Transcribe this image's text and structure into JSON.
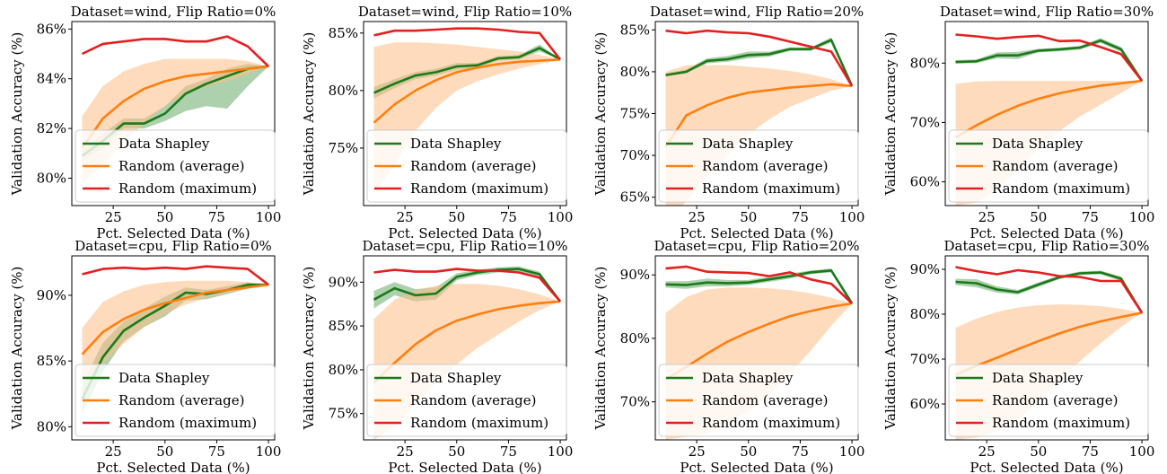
{
  "colors": {
    "shapley": "#1a7a1a",
    "shapley_band": "#6aaa6a",
    "random_avg": "#ff7f0e",
    "random_avg_band": "#ffbe86",
    "random_max": "#e41f1f",
    "frame": "#000000"
  },
  "legend_labels": [
    "Data Shapley",
    "Random (average)",
    "Random (maximum)"
  ],
  "chart_data": [
    {
      "type": "line",
      "title": "Dataset=wind, Flip Ratio=0%",
      "xlabel": "Pct. Selected Data (%)",
      "ylabel": "Validation Accuracy (%)",
      "xlim": [
        5,
        103
      ],
      "ylim": [
        78.9,
        86.3
      ],
      "xticks": [
        25,
        50,
        75,
        100
      ],
      "xtick_labels": [
        "25",
        "50",
        "75",
        "100"
      ],
      "yticks": [
        80,
        82,
        84,
        86
      ],
      "ytick_labels": [
        "80%",
        "82%",
        "84%",
        "86%"
      ],
      "x": [
        10,
        20,
        30,
        40,
        50,
        60,
        70,
        80,
        90,
        100
      ],
      "series": [
        {
          "name": "Data Shapley",
          "values": [
            80.9,
            81.5,
            82.2,
            82.2,
            82.6,
            83.4,
            83.8,
            84.1,
            84.4,
            84.5
          ],
          "lower": [
            80.7,
            81.2,
            82.0,
            82.0,
            82.3,
            82.7,
            82.9,
            82.8,
            83.7,
            84.5
          ],
          "upper": [
            81.1,
            81.8,
            82.4,
            82.4,
            82.9,
            83.7,
            84.0,
            84.4,
            84.6,
            84.5
          ]
        },
        {
          "name": "Random (average)",
          "values": [
            81.2,
            82.4,
            83.1,
            83.6,
            83.9,
            84.1,
            84.2,
            84.3,
            84.4,
            84.5
          ],
          "lower": [
            79.8,
            80.5,
            81.5,
            82.2,
            82.9,
            83.4,
            83.7,
            83.9,
            84.2,
            84.5
          ],
          "upper": [
            82.5,
            83.7,
            84.3,
            84.6,
            84.8,
            84.8,
            84.8,
            84.8,
            84.7,
            84.5
          ]
        },
        {
          "name": "Random (maximum)",
          "values": [
            85.0,
            85.4,
            85.5,
            85.6,
            85.6,
            85.5,
            85.5,
            85.7,
            85.3,
            84.5
          ]
        }
      ],
      "legend": "lower-left"
    },
    {
      "type": "line",
      "title": "Dataset=wind, Flip Ratio=10%",
      "xlabel": "Pct. Selected Data (%)",
      "ylabel": "Validation Accuracy (%)",
      "xlim": [
        5,
        103
      ],
      "ylim": [
        70,
        86
      ],
      "xticks": [
        25,
        50,
        75,
        100
      ],
      "xtick_labels": [
        "25",
        "50",
        "75",
        "100"
      ],
      "yticks": [
        75,
        80,
        85
      ],
      "ytick_labels": [
        "75%",
        "80%",
        "85%"
      ],
      "x": [
        10,
        20,
        30,
        40,
        50,
        60,
        70,
        80,
        90,
        100
      ],
      "series": [
        {
          "name": "Data Shapley",
          "values": [
            79.8,
            80.6,
            81.3,
            81.6,
            82.1,
            82.2,
            82.8,
            82.9,
            83.7,
            82.7
          ],
          "lower": [
            79.3,
            80.2,
            81.0,
            81.3,
            81.8,
            82.0,
            82.6,
            82.7,
            83.4,
            82.7
          ],
          "upper": [
            80.3,
            81.0,
            81.6,
            81.9,
            82.4,
            82.4,
            83.0,
            83.1,
            84.0,
            82.7
          ]
        },
        {
          "name": "Random (average)",
          "values": [
            77.2,
            78.8,
            80.0,
            80.9,
            81.6,
            82.0,
            82.3,
            82.5,
            82.6,
            82.7
          ],
          "lower": [
            71.0,
            73.5,
            76.5,
            78.5,
            80.0,
            80.8,
            81.4,
            81.9,
            82.3,
            82.7
          ],
          "upper": [
            83.8,
            84.2,
            84.2,
            84.1,
            84.0,
            83.8,
            83.6,
            83.4,
            83.1,
            82.7
          ]
        },
        {
          "name": "Random (maximum)",
          "values": [
            84.8,
            85.2,
            85.2,
            85.3,
            85.4,
            85.4,
            85.3,
            85.1,
            85.0,
            82.7
          ]
        }
      ],
      "legend": "lower-left"
    },
    {
      "type": "line",
      "title": "Dataset=wind, Flip Ratio=20%",
      "xlabel": "Pct. Selected Data (%)",
      "ylabel": "Validation Accuracy (%)",
      "xlim": [
        5,
        103
      ],
      "ylim": [
        64,
        86
      ],
      "xticks": [
        25,
        50,
        75,
        100
      ],
      "xtick_labels": [
        "25",
        "50",
        "75",
        "100"
      ],
      "yticks": [
        65,
        70,
        75,
        80,
        85
      ],
      "ytick_labels": [
        "65%",
        "70%",
        "75%",
        "80%",
        "85%"
      ],
      "x": [
        10,
        20,
        30,
        40,
        50,
        60,
        70,
        80,
        90,
        100
      ],
      "series": [
        {
          "name": "Data Shapley",
          "values": [
            79.6,
            80.0,
            81.3,
            81.5,
            82.0,
            82.1,
            82.7,
            82.7,
            83.8,
            78.3
          ],
          "lower": [
            79.4,
            79.8,
            81.0,
            81.2,
            81.6,
            81.8,
            82.5,
            82.5,
            83.5,
            78.3
          ],
          "upper": [
            79.8,
            80.3,
            81.6,
            81.9,
            82.4,
            82.4,
            82.9,
            82.9,
            84.1,
            78.3
          ]
        },
        {
          "name": "Random (average)",
          "values": [
            71.0,
            74.8,
            76.0,
            76.9,
            77.5,
            77.8,
            78.1,
            78.3,
            78.5,
            78.3
          ],
          "lower": [
            62.0,
            64.5,
            67.5,
            70.0,
            72.5,
            74.3,
            75.8,
            76.8,
            77.7,
            78.3
          ],
          "upper": [
            80.0,
            80.8,
            80.8,
            80.8,
            80.6,
            80.4,
            80.1,
            79.7,
            79.1,
            78.3
          ]
        },
        {
          "name": "Random (maximum)",
          "values": [
            84.9,
            84.6,
            84.9,
            84.7,
            84.6,
            84.2,
            83.6,
            83.0,
            82.4,
            78.3
          ]
        }
      ],
      "legend": "lower-left"
    },
    {
      "type": "line",
      "title": "Dataset=wind, Flip Ratio=30%",
      "xlabel": "Pct. Selected Data (%)",
      "ylabel": "Validation Accuracy (%)",
      "xlim": [
        5,
        103
      ],
      "ylim": [
        56,
        87
      ],
      "xticks": [
        25,
        50,
        75,
        100
      ],
      "xtick_labels": [
        "25",
        "50",
        "75",
        "100"
      ],
      "yticks": [
        60,
        70,
        80
      ],
      "ytick_labels": [
        "60%",
        "70%",
        "80%"
      ],
      "x": [
        10,
        20,
        30,
        40,
        50,
        60,
        70,
        80,
        90,
        100
      ],
      "series": [
        {
          "name": "Data Shapley",
          "values": [
            80.2,
            80.3,
            81.3,
            81.3,
            82.1,
            82.3,
            82.6,
            83.8,
            82.3,
            77.0
          ],
          "lower": [
            79.9,
            80.0,
            80.8,
            80.7,
            81.8,
            82.0,
            82.3,
            83.4,
            81.9,
            77.0
          ],
          "upper": [
            80.5,
            80.6,
            81.8,
            81.9,
            82.4,
            82.6,
            82.9,
            84.2,
            82.7,
            77.0
          ]
        },
        {
          "name": "Random (average)",
          "values": [
            67.5,
            69.5,
            71.3,
            72.8,
            74.0,
            74.9,
            75.6,
            76.2,
            76.6,
            77.0
          ],
          "lower": [
            56.0,
            56.5,
            58.5,
            62.0,
            65.5,
            68.5,
            71.0,
            73.0,
            75.0,
            77.0
          ],
          "upper": [
            76.5,
            76.9,
            77.0,
            77.0,
            77.0,
            77.0,
            77.0,
            77.0,
            77.0,
            77.0
          ]
        },
        {
          "name": "Random (maximum)",
          "values": [
            84.8,
            84.5,
            84.1,
            84.4,
            84.6,
            83.7,
            83.8,
            82.7,
            81.5,
            77.0
          ]
        }
      ],
      "legend": "lower-left"
    },
    {
      "type": "line",
      "title": "Dataset=cpu, Flip Ratio=0%",
      "xlabel": "Pct. Selected Data (%)",
      "ylabel": "Validation Accuracy (%)",
      "xlim": [
        5,
        103
      ],
      "ylim": [
        79,
        93
      ],
      "xticks": [
        25,
        50,
        75,
        100
      ],
      "xtick_labels": [
        "25",
        "50",
        "75",
        "100"
      ],
      "yticks": [
        80,
        85,
        90
      ],
      "ytick_labels": [
        "80%",
        "85%",
        "90%"
      ],
      "x": [
        10,
        20,
        30,
        40,
        50,
        60,
        70,
        80,
        90,
        100
      ],
      "series": [
        {
          "name": "Data Shapley",
          "values": [
            82.1,
            85.3,
            87.3,
            88.3,
            89.2,
            90.2,
            90.1,
            90.4,
            90.8,
            90.8
          ],
          "lower": [
            81.0,
            84.2,
            86.5,
            87.6,
            88.4,
            89.6,
            89.7,
            90.1,
            90.5,
            90.8
          ],
          "upper": [
            83.2,
            86.4,
            88.0,
            89.0,
            89.9,
            90.6,
            90.4,
            90.7,
            91.0,
            90.8
          ]
        },
        {
          "name": "Random (average)",
          "values": [
            85.5,
            87.2,
            88.2,
            88.9,
            89.4,
            89.8,
            90.2,
            90.4,
            90.6,
            90.8
          ],
          "lower": [
            83.3,
            84.8,
            86.3,
            87.6,
            88.6,
            89.3,
            89.8,
            90.2,
            90.5,
            90.8
          ],
          "upper": [
            87.5,
            89.5,
            90.3,
            90.8,
            91.0,
            91.1,
            91.1,
            91.1,
            91.0,
            90.8
          ]
        },
        {
          "name": "Random (maximum)",
          "values": [
            91.6,
            92.0,
            92.1,
            92.0,
            92.1,
            92.0,
            92.2,
            92.1,
            92.0,
            90.8
          ]
        }
      ],
      "legend": "lower-left"
    },
    {
      "type": "line",
      "title": "Dataset=cpu, Flip Ratio=10%",
      "xlabel": "Pct. Selected Data (%)",
      "ylabel": "Validation Accuracy (%)",
      "xlim": [
        5,
        103
      ],
      "ylim": [
        72,
        93
      ],
      "xticks": [
        25,
        50,
        75,
        100
      ],
      "xtick_labels": [
        "25",
        "50",
        "75",
        "100"
      ],
      "yticks": [
        75,
        80,
        85,
        90
      ],
      "ytick_labels": [
        "75%",
        "80%",
        "85%",
        "90%"
      ],
      "x": [
        10,
        20,
        30,
        40,
        50,
        60,
        70,
        80,
        90,
        100
      ],
      "series": [
        {
          "name": "Data Shapley",
          "values": [
            88.0,
            89.3,
            88.5,
            88.7,
            90.6,
            91.1,
            91.4,
            91.5,
            90.9,
            87.8
          ],
          "lower": [
            87.0,
            88.5,
            87.8,
            88.0,
            90.2,
            90.8,
            91.1,
            91.2,
            90.6,
            87.8
          ],
          "upper": [
            89.0,
            90.0,
            89.2,
            89.4,
            91.0,
            91.4,
            91.7,
            91.8,
            91.2,
            87.8
          ]
        },
        {
          "name": "Random (average)",
          "values": [
            78.5,
            80.8,
            82.9,
            84.5,
            85.6,
            86.3,
            86.9,
            87.3,
            87.6,
            87.8
          ],
          "lower": [
            72.0,
            73.5,
            76.0,
            78.5,
            80.6,
            82.5,
            84.0,
            85.5,
            86.8,
            87.8
          ],
          "upper": [
            85.8,
            88.0,
            89.1,
            89.6,
            89.8,
            89.8,
            89.6,
            89.2,
            88.6,
            87.8
          ]
        },
        {
          "name": "Random (maximum)",
          "values": [
            91.1,
            91.4,
            91.2,
            91.2,
            91.5,
            91.3,
            91.3,
            91.1,
            90.5,
            87.8
          ]
        }
      ],
      "legend": "lower-left"
    },
    {
      "type": "line",
      "title": "Dataset=cpu, Flip Ratio=20%",
      "xlabel": "Pct. Selected Data (%)",
      "ylabel": "Validation Accuracy (%)",
      "xlim": [
        5,
        103
      ],
      "ylim": [
        64,
        93
      ],
      "xticks": [
        25,
        50,
        75,
        100
      ],
      "xtick_labels": [
        "25",
        "50",
        "75",
        "100"
      ],
      "yticks": [
        70,
        80,
        90
      ],
      "ytick_labels": [
        "70%",
        "80%",
        "90%"
      ],
      "x": [
        10,
        20,
        30,
        40,
        50,
        60,
        70,
        80,
        90,
        100
      ],
      "series": [
        {
          "name": "Data Shapley",
          "values": [
            88.5,
            88.4,
            88.8,
            88.7,
            88.8,
            89.3,
            89.8,
            90.4,
            90.7,
            85.5
          ],
          "lower": [
            88.0,
            87.8,
            88.2,
            88.2,
            88.4,
            88.9,
            89.4,
            90.1,
            90.4,
            85.5
          ],
          "upper": [
            89.0,
            89.0,
            89.4,
            89.2,
            89.2,
            89.7,
            90.2,
            90.7,
            91.0,
            85.5
          ]
        },
        {
          "name": "Random (average)",
          "values": [
            73.5,
            75.5,
            77.6,
            79.5,
            81.0,
            82.3,
            83.5,
            84.3,
            85.0,
            85.5
          ],
          "lower": [
            64.0,
            64.5,
            65.0,
            66.5,
            68.5,
            71.0,
            74.5,
            78.0,
            82.0,
            85.5
          ],
          "upper": [
            84.0,
            86.5,
            87.7,
            88.0,
            88.0,
            87.9,
            87.6,
            87.1,
            86.4,
            85.5
          ]
        },
        {
          "name": "Random (maximum)",
          "values": [
            91.0,
            91.3,
            90.5,
            90.4,
            90.3,
            89.8,
            90.4,
            89.3,
            88.6,
            85.5
          ]
        }
      ],
      "legend": "lower-left"
    },
    {
      "type": "line",
      "title": "Dataset=cpu, Flip Ratio=30%",
      "xlabel": "Pct. Selected Data (%)",
      "ylabel": "Validation Accuracy (%)",
      "xlim": [
        5,
        103
      ],
      "ylim": [
        52,
        93
      ],
      "xticks": [
        25,
        50,
        75,
        100
      ],
      "xtick_labels": [
        "25",
        "50",
        "75",
        "100"
      ],
      "yticks": [
        60,
        70,
        80,
        90
      ],
      "ytick_labels": [
        "60%",
        "70%",
        "80%",
        "90%"
      ],
      "x": [
        10,
        20,
        30,
        40,
        50,
        60,
        70,
        80,
        90,
        100
      ],
      "series": [
        {
          "name": "Data Shapley",
          "values": [
            87.2,
            86.9,
            85.5,
            84.9,
            86.6,
            88.2,
            89.1,
            89.3,
            87.9,
            80.3
          ],
          "lower": [
            86.5,
            86.0,
            84.8,
            84.4,
            86.1,
            87.8,
            88.7,
            88.9,
            87.4,
            80.3
          ],
          "upper": [
            87.9,
            87.8,
            86.2,
            85.4,
            87.1,
            88.6,
            89.5,
            89.7,
            88.4,
            80.3
          ]
        },
        {
          "name": "Random (average)",
          "values": [
            66.5,
            68.5,
            70.3,
            72.2,
            74.0,
            75.7,
            77.2,
            78.4,
            79.4,
            80.3
          ],
          "lower": [
            52.0,
            52.5,
            54.0,
            56.5,
            60.5,
            65.0,
            69.5,
            73.5,
            77.2,
            80.3
          ],
          "upper": [
            77.0,
            79.0,
            80.5,
            81.5,
            82.0,
            82.2,
            82.1,
            81.8,
            81.2,
            80.3
          ]
        },
        {
          "name": "Random (maximum)",
          "values": [
            90.5,
            89.6,
            88.9,
            89.8,
            89.3,
            88.5,
            88.3,
            87.4,
            87.4,
            80.3
          ]
        }
      ],
      "legend": "lower-left"
    }
  ]
}
